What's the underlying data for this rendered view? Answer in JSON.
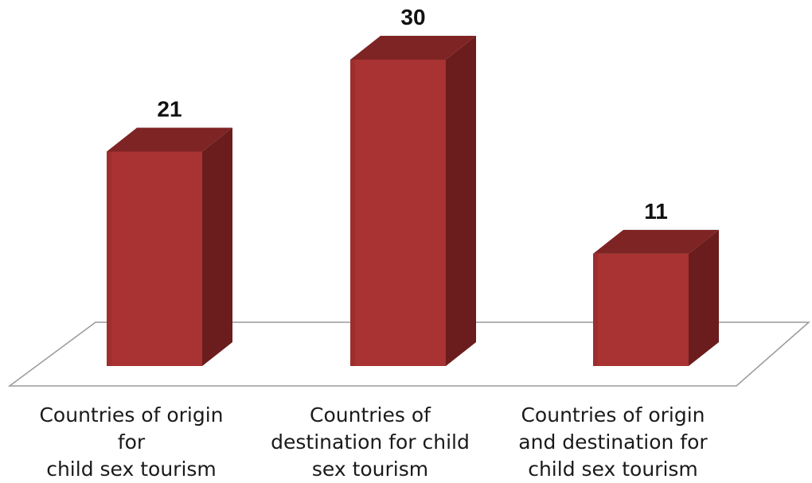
{
  "chart_data": {
    "type": "bar",
    "style": "3d-column",
    "categories": [
      "Countries of origin for\nchild sex tourism",
      "Countries of\ndestination for child\nsex tourism",
      "Countries of origin\nand destination for\nchild sex tourism"
    ],
    "values": [
      21,
      30,
      11
    ],
    "data_labels": [
      "21",
      "30",
      "11"
    ],
    "title": "",
    "xlabel": "",
    "ylabel": "",
    "ylim": [
      0,
      30
    ],
    "grid": false,
    "legend": "none",
    "colors": {
      "front": "#a93232",
      "side": "#6b1c1c",
      "top": "#7e2424",
      "floor": "#9a9a9a"
    }
  }
}
